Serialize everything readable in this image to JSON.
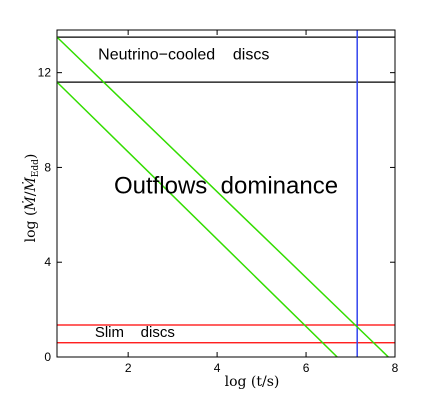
{
  "chart_data": {
    "type": "line",
    "xlabel": "log (t/s)",
    "ylabel": "log (Ṁ/Ṁ_Edd)",
    "ylabel_parts": {
      "prefix": "log (",
      "mdot": "Ṁ",
      "slash": "/",
      "mdot2": "Ṁ",
      "sub": "Edd",
      "suffix": ")"
    },
    "xlim": [
      0.4,
      8
    ],
    "ylim": [
      0,
      13.8
    ],
    "xticks": [
      2,
      4,
      6,
      8
    ],
    "yticks": [
      0,
      4,
      8,
      12
    ],
    "grid": false,
    "hlines": [
      {
        "y": 13.5,
        "color": "#000000"
      },
      {
        "y": 11.6,
        "color": "#000000"
      },
      {
        "y": 1.35,
        "color": "#ff0000"
      },
      {
        "y": 0.6,
        "color": "#ff0000"
      }
    ],
    "vlines": [
      {
        "x": 7.15,
        "color": "#3344ee"
      }
    ],
    "series": [
      {
        "color": "#33dd00",
        "x": [
          0.4,
          7.85
        ],
        "y": [
          13.5,
          0
        ]
      },
      {
        "color": "#33dd00",
        "x": [
          0.4,
          6.7
        ],
        "y": [
          11.6,
          0
        ]
      }
    ],
    "annotations": [
      {
        "text": "Neutrino−cooled    discs",
        "x": 3.25,
        "y": 12.55,
        "size": 16
      },
      {
        "text": "Outflows  dominance",
        "x": 4.2,
        "y": 6.9,
        "size": 24
      },
      {
        "text": "Slim    discs",
        "x": 2.15,
        "y": 0.85,
        "size": 15
      }
    ]
  }
}
